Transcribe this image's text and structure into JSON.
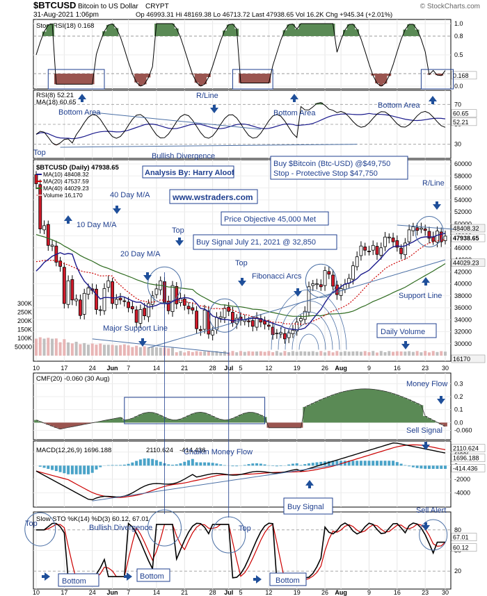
{
  "header": {
    "symbol": "$BTCUSD",
    "name": "Bitcoin to US Dollar",
    "type": "CRYPT",
    "date": "31-Aug-2021 1:06pm",
    "stats": "Op 46993.31  Hi 48169.38  Lo 46713.72  Last 47938.65  Vol 16.2K  Chg +945.34 (+2.01%)",
    "brand": "© StockCharts.com"
  },
  "colors": {
    "up_candle": "#ffffff",
    "down_candle": "#d01a2a",
    "ma10": "#1a1a8c",
    "ma20": "#cc0000",
    "ma40": "#2e6b1f",
    "volume": "#e8b5b5",
    "volume_down": "#bfbfbf",
    "annotation": "#1f3f8f",
    "area_green": "#5a8a55",
    "area_red": "#9a5550",
    "macd_hist": "#4aa3c8"
  },
  "date_axis": [
    "10",
    "17",
    "24",
    "Jun",
    "7",
    "14",
    "21",
    "28",
    "Jul",
    "5",
    "12",
    "19",
    "26",
    "Aug",
    "9",
    "16",
    "23",
    "30"
  ],
  "annotations": {
    "bottom_area_left": "Bottom Area",
    "bottom_area_mid": "Bottom Area",
    "bottom_area_right": "Bottom Area",
    "r_line_top": "R/Line",
    "top_rsi": "Top",
    "bullish_divergence_rsi": "Bullish Divergence",
    "analysis_by": "Analysis By: Harry Aloof",
    "website": "www.wstraders.com",
    "buy_bitcoin": "Buy $Bitcoin (Btc-USD) @$49,750",
    "stop": "Stop - Protective Stop $47,750",
    "r_line_price": "R/Line",
    "ma40_lbl": "40 Day M/A",
    "ma10_lbl": "10 Day M/A",
    "ma20_lbl": "20 Day M/A",
    "top_price_1": "Top",
    "top_price_2": "Top",
    "price_objective": "Price Objective 45,000 Met",
    "buy_signal_july": "Buy Signal July 21, 2021 @ 32,850",
    "fibonacci": "Fibonacci Arcs",
    "major_support": "Major Support Line",
    "support_line": "Support Line",
    "daily_volume": "Daily Volume",
    "money_flow": "Money Flow",
    "sell_signal": "Sell Signal",
    "chaikin": "Chaikin Money Flow",
    "buy_signal_macd": "Buy Signal",
    "sell_alert": "Sell Alert",
    "top_sto_1": "Top",
    "top_sto_2": "Top",
    "bullish_divergence_sto": "Bullish Divergence",
    "bottom_sto_1": "Bottom",
    "bottom_sto_2": "Bottom",
    "bottom_sto_3": "Bottom"
  },
  "chart_data": [
    {
      "type": "line",
      "title": "StochRSI(18) 0.168",
      "ylim": [
        0,
        1.0
      ],
      "y_ticks": [
        "1.0",
        "0.8",
        "0.5",
        "0.2",
        "0.0"
      ],
      "last_value": "0.168"
    },
    {
      "type": "line",
      "title": "RSI(8) 52.21",
      "legend": [
        "RSI(8) 52.21",
        "MA(18) 60.65"
      ],
      "ylim": [
        20,
        80
      ],
      "y_ticks": [
        "70",
        "50",
        "30"
      ],
      "last_values": [
        "60.65",
        "52.21"
      ]
    },
    {
      "type": "bar",
      "title": "$BTCUSD (Daily) 47938.65",
      "legend": [
        "MA(10) 48408.32",
        "MA(20) 47537.59",
        "MA(40) 44029.23",
        "Volume 16,170"
      ],
      "ylim": [
        28000,
        60000
      ],
      "y_ticks": [
        "60000",
        "58000",
        "56000",
        "54000",
        "52000",
        "50000",
        "48000",
        "46000",
        "44000",
        "42000",
        "40000",
        "38000",
        "36000",
        "34000",
        "32000",
        "30000"
      ],
      "volume_ticks": [
        "300K",
        "250K",
        "200K",
        "150K",
        "100K",
        "50000"
      ],
      "last_values": [
        "48408.32",
        "47938.65",
        "44029.23",
        "16170"
      ],
      "close_series": [
        56700,
        49150,
        49700,
        46400,
        46450,
        43600,
        42900,
        36700,
        40500,
        37300,
        37450,
        34700,
        38400,
        39300,
        38900,
        35700,
        35650,
        39200,
        40500,
        36700,
        37400,
        37300,
        37100,
        36000,
        35800,
        33550,
        35700,
        34650,
        36700,
        38000,
        39150,
        40500,
        36900,
        35500,
        39700,
        36650,
        37600,
        36400,
        35800,
        35600,
        32500,
        32200,
        35600,
        31600,
        32200,
        34400,
        34500,
        35900,
        35400,
        33500,
        34250,
        33850,
        33950,
        33650,
        32900,
        34350,
        33600,
        33250,
        32900,
        31500,
        31750,
        31850,
        30800,
        31800,
        32250,
        33600,
        34200,
        35400,
        39500,
        40000,
        40000,
        39500,
        42200,
        41600,
        39600,
        38200,
        39200,
        39900,
        40900,
        43000,
        44500,
        46300,
        45600,
        45400,
        46400,
        44900,
        46000,
        47800,
        47800,
        47000,
        46100,
        45000,
        46800,
        49000,
        49500,
        48900,
        49300,
        48900,
        47600,
        47100,
        48800,
        47000,
        47950
      ],
      "ma10_last": 48408.32,
      "ma20_last": 47537.59,
      "ma40_last": 44029.23
    },
    {
      "type": "area",
      "title": "CMF(20) -0.060 (30 Aug)",
      "ylim": [
        -0.1,
        0.35
      ],
      "y_ticks": [
        "0.3",
        "0.2",
        "0.1",
        "0.0",
        "-0.060"
      ],
      "last_value": "-0.060"
    },
    {
      "type": "line",
      "title": "MACD(12,26,9) 1696.188, 2110.624, -414.436",
      "legend": [
        "MACD(12,26,9) 1696.188",
        "2110.624",
        "-414.436"
      ],
      "ylim": [
        -5500,
        3000
      ],
      "y_ticks": [
        "2000",
        "0",
        "-2000",
        "-4000"
      ],
      "last_values": [
        "2110.624",
        "1696.188",
        "-414.436"
      ]
    },
    {
      "type": "line",
      "title": "Slow STO %K(14) %D(3) 60.12, 67.01",
      "ylim": [
        0,
        100
      ],
      "y_ticks": [
        "80",
        "50",
        "20"
      ],
      "last_values": [
        "67.01",
        "60.12"
      ]
    }
  ]
}
